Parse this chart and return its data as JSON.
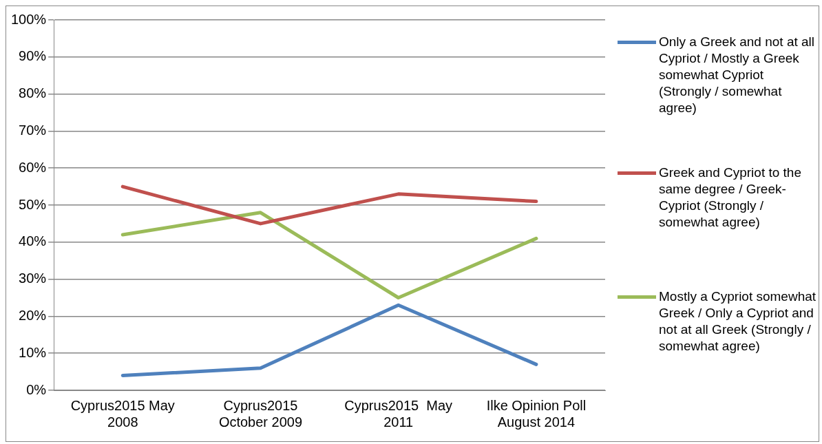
{
  "chart_data": {
    "type": "line",
    "categories": [
      "Cyprus2015 May 2008",
      "Cyprus2015 October 2009",
      "Cyprus2015  May 2011",
      "Ilke Opinion Poll August 2014"
    ],
    "series": [
      {
        "name": "Only a Greek and not at all Cypriot / Mostly a Greek somewhat Cypriot (Strongly / somewhat agree)",
        "color": "#4f81bd",
        "values": [
          4,
          6,
          23,
          7
        ]
      },
      {
        "name": "Greek and Cypriot to the same degree / Greek-Cypriot (Strongly / somewhat agree)",
        "color": "#c0504d",
        "values": [
          55,
          45,
          53,
          51
        ]
      },
      {
        "name": "Mostly a Cypriot somewhat Greek / Only a Cypriot and not at all Greek  (Strongly / somewhat agree)",
        "color": "#9bbb59",
        "values": [
          42,
          48,
          25,
          41
        ]
      }
    ],
    "ylim": [
      0,
      100
    ],
    "yticks": [
      {
        "value": 0,
        "label": "0%"
      },
      {
        "value": 10,
        "label": "10%"
      },
      {
        "value": 20,
        "label": "20%"
      },
      {
        "value": 30,
        "label": "30%"
      },
      {
        "value": 40,
        "label": "40%"
      },
      {
        "value": 50,
        "label": "50%"
      },
      {
        "value": 60,
        "label": "60%"
      },
      {
        "value": 70,
        "label": "70%"
      },
      {
        "value": 80,
        "label": "80%"
      },
      {
        "value": 90,
        "label": "90%"
      },
      {
        "value": 100,
        "label": "100%"
      }
    ],
    "grid": "y",
    "legend": "right",
    "marker": "none",
    "line_style": "solid"
  }
}
